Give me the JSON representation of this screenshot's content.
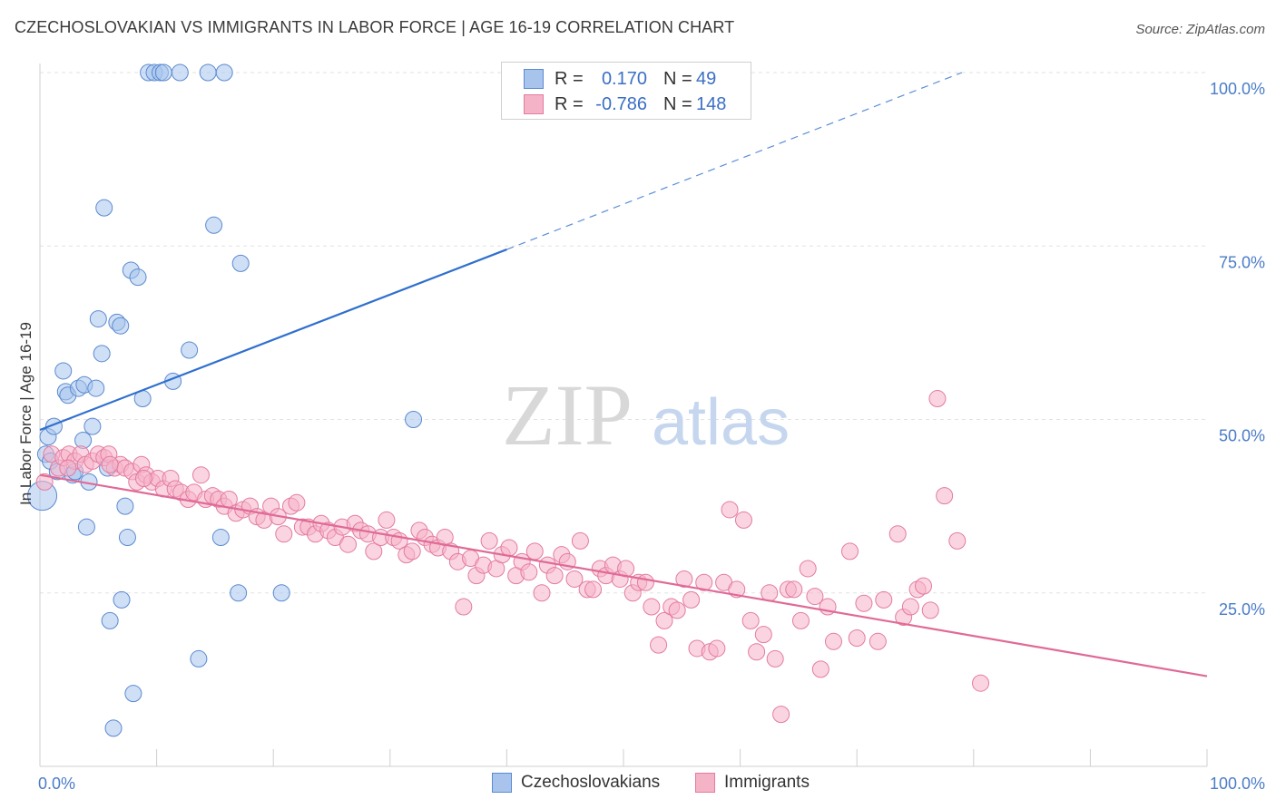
{
  "title": "CZECHOSLOVAKIAN VS IMMIGRANTS IN LABOR FORCE | AGE 16-19 CORRELATION CHART",
  "source": "Source: ZipAtlas.com",
  "watermark": {
    "zip": "ZIP",
    "atlas": "atlas"
  },
  "legend": {
    "r_label": "R =",
    "n_label": "N =",
    "rows": [
      {
        "r": "0.170",
        "n": "49",
        "color": "#4a7cc8"
      },
      {
        "r": "-0.786",
        "n": "148",
        "color": "#e06a96"
      }
    ]
  },
  "chart_data": {
    "type": "scatter",
    "title": "CZECHOSLOVAKIAN VS IMMIGRANTS IN LABOR FORCE | AGE 16-19 CORRELATION CHART",
    "xlabel": "",
    "ylabel": "In Labor Force | Age 16-19",
    "xlim": [
      0,
      100
    ],
    "ylim": [
      0,
      100
    ],
    "x_tick_labels": [
      "0.0%",
      "100.0%"
    ],
    "y_ticks": [
      25,
      50,
      75,
      100
    ],
    "y_tick_labels": [
      "25.0%",
      "50.0%",
      "75.0%",
      "100.0%"
    ],
    "grid": true,
    "legend_position": "top-center",
    "series": [
      {
        "name": "Czechoslovakians",
        "color": "#a8c4ec",
        "edge": "#5b8ad0",
        "trend": {
          "x0": 0,
          "y0": 48.5,
          "x1": 40,
          "y1": 74.5,
          "dash_to_x": 79,
          "dash_to_y": 100
        },
        "points": [
          [
            0.2,
            39
          ],
          [
            0.5,
            45
          ],
          [
            0.7,
            47.5
          ],
          [
            0.9,
            44
          ],
          [
            1.2,
            49
          ],
          [
            1.5,
            42.5
          ],
          [
            2.0,
            57
          ],
          [
            2.2,
            54
          ],
          [
            2.4,
            53.5
          ],
          [
            2.8,
            42
          ],
          [
            3.3,
            54.5
          ],
          [
            3.7,
            47
          ],
          [
            3.8,
            55
          ],
          [
            4.0,
            34.5
          ],
          [
            4.2,
            41
          ],
          [
            4.5,
            49
          ],
          [
            4.8,
            54.5
          ],
          [
            5.0,
            64.5
          ],
          [
            5.3,
            59.5
          ],
          [
            5.5,
            80.5
          ],
          [
            5.8,
            43
          ],
          [
            6.0,
            21
          ],
          [
            6.3,
            5.5
          ],
          [
            6.6,
            64
          ],
          [
            6.9,
            63.5
          ],
          [
            7.0,
            24
          ],
          [
            7.3,
            37.5
          ],
          [
            7.5,
            33
          ],
          [
            7.8,
            71.5
          ],
          [
            8.0,
            10.5
          ],
          [
            8.4,
            70.5
          ],
          [
            8.8,
            53
          ],
          [
            9.3,
            100
          ],
          [
            9.8,
            100
          ],
          [
            10.3,
            100
          ],
          [
            10.6,
            100
          ],
          [
            11.4,
            55.5
          ],
          [
            12.0,
            100
          ],
          [
            12.8,
            60
          ],
          [
            13.6,
            15.5
          ],
          [
            14.4,
            100
          ],
          [
            14.9,
            78
          ],
          [
            15.5,
            33
          ],
          [
            15.8,
            100
          ],
          [
            17.0,
            25
          ],
          [
            17.2,
            72.5
          ],
          [
            20.7,
            25
          ],
          [
            32.0,
            50
          ],
          [
            3.0,
            42.5
          ]
        ],
        "sizes": {
          "0": 16
        }
      },
      {
        "name": "Immigrants",
        "color": "#f5b3c8",
        "edge": "#e47ba0",
        "trend": {
          "x0": 0,
          "y0": 42,
          "x1": 100,
          "y1": 13
        },
        "points": [
          [
            0.4,
            41
          ],
          [
            1.0,
            45
          ],
          [
            1.6,
            43
          ],
          [
            2.0,
            44.5
          ],
          [
            2.5,
            45
          ],
          [
            3.0,
            44
          ],
          [
            3.5,
            45
          ],
          [
            3.9,
            43.5
          ],
          [
            4.5,
            44
          ],
          [
            5.0,
            45
          ],
          [
            5.5,
            44.5
          ],
          [
            5.9,
            45
          ],
          [
            6.4,
            43
          ],
          [
            6.9,
            43.5
          ],
          [
            7.3,
            43
          ],
          [
            7.9,
            42.5
          ],
          [
            8.3,
            41
          ],
          [
            8.7,
            43.5
          ],
          [
            9.1,
            42
          ],
          [
            9.6,
            41
          ],
          [
            10.1,
            41.5
          ],
          [
            10.6,
            40
          ],
          [
            11.2,
            41.5
          ],
          [
            11.6,
            40
          ],
          [
            12.1,
            39.5
          ],
          [
            12.7,
            38.5
          ],
          [
            13.2,
            39.5
          ],
          [
            13.8,
            42
          ],
          [
            14.2,
            38.5
          ],
          [
            14.8,
            39
          ],
          [
            15.3,
            38.5
          ],
          [
            15.8,
            37.5
          ],
          [
            16.2,
            38.5
          ],
          [
            16.8,
            36.5
          ],
          [
            17.4,
            37
          ],
          [
            18.0,
            37.5
          ],
          [
            18.6,
            36
          ],
          [
            19.2,
            35.5
          ],
          [
            19.8,
            37.5
          ],
          [
            20.4,
            36
          ],
          [
            20.9,
            33.5
          ],
          [
            21.5,
            37.5
          ],
          [
            22.0,
            38
          ],
          [
            22.5,
            34.5
          ],
          [
            23.0,
            34.5
          ],
          [
            23.6,
            33.5
          ],
          [
            24.1,
            35
          ],
          [
            24.7,
            34
          ],
          [
            25.3,
            33
          ],
          [
            25.9,
            34.5
          ],
          [
            26.4,
            32
          ],
          [
            27.0,
            35
          ],
          [
            27.5,
            34
          ],
          [
            28.1,
            33.5
          ],
          [
            28.6,
            31
          ],
          [
            29.2,
            33
          ],
          [
            29.7,
            35.5
          ],
          [
            30.3,
            33
          ],
          [
            30.8,
            32.5
          ],
          [
            31.4,
            30.5
          ],
          [
            31.9,
            31
          ],
          [
            32.5,
            34
          ],
          [
            33.0,
            33
          ],
          [
            33.6,
            32
          ],
          [
            34.1,
            31.5
          ],
          [
            34.7,
            33
          ],
          [
            35.2,
            31
          ],
          [
            35.8,
            29.5
          ],
          [
            36.3,
            23
          ],
          [
            36.9,
            30
          ],
          [
            37.4,
            27.5
          ],
          [
            38.0,
            29
          ],
          [
            38.5,
            32.5
          ],
          [
            39.1,
            28.5
          ],
          [
            39.6,
            30.5
          ],
          [
            40.2,
            31.5
          ],
          [
            40.8,
            27.5
          ],
          [
            41.3,
            29.5
          ],
          [
            41.9,
            28
          ],
          [
            42.4,
            31
          ],
          [
            43.0,
            25
          ],
          [
            43.5,
            29
          ],
          [
            44.1,
            27.5
          ],
          [
            44.7,
            30.5
          ],
          [
            45.2,
            29.5
          ],
          [
            45.8,
            27
          ],
          [
            46.3,
            32.5
          ],
          [
            46.9,
            25.5
          ],
          [
            47.4,
            25.5
          ],
          [
            48.0,
            28.5
          ],
          [
            48.5,
            27.5
          ],
          [
            49.1,
            29
          ],
          [
            49.7,
            27
          ],
          [
            50.2,
            28.5
          ],
          [
            50.8,
            25
          ],
          [
            51.3,
            26.5
          ],
          [
            51.9,
            26.5
          ],
          [
            52.4,
            23
          ],
          [
            53.0,
            17.5
          ],
          [
            53.5,
            21
          ],
          [
            54.1,
            23
          ],
          [
            54.6,
            22.5
          ],
          [
            55.2,
            27
          ],
          [
            55.8,
            24
          ],
          [
            56.3,
            17
          ],
          [
            56.9,
            26.5
          ],
          [
            57.4,
            16.5
          ],
          [
            58.0,
            17
          ],
          [
            58.6,
            26.5
          ],
          [
            59.1,
            37
          ],
          [
            59.7,
            25.5
          ],
          [
            60.3,
            35.5
          ],
          [
            60.9,
            21
          ],
          [
            61.4,
            16.5
          ],
          [
            62.0,
            19
          ],
          [
            62.5,
            25
          ],
          [
            63.0,
            15.5
          ],
          [
            63.5,
            7.5
          ],
          [
            64.1,
            25.5
          ],
          [
            64.6,
            25.5
          ],
          [
            65.2,
            21
          ],
          [
            65.8,
            28.5
          ],
          [
            66.4,
            24.5
          ],
          [
            66.9,
            14
          ],
          [
            67.5,
            23
          ],
          [
            68.0,
            18
          ],
          [
            69.4,
            31
          ],
          [
            70.0,
            18.5
          ],
          [
            70.6,
            23.5
          ],
          [
            71.8,
            18
          ],
          [
            72.3,
            24
          ],
          [
            73.5,
            33.5
          ],
          [
            74.0,
            21.5
          ],
          [
            74.6,
            23
          ],
          [
            75.2,
            25.5
          ],
          [
            75.7,
            26
          ],
          [
            76.3,
            22.5
          ],
          [
            76.9,
            53
          ],
          [
            77.5,
            39
          ],
          [
            78.6,
            32.5
          ],
          [
            80.6,
            12
          ],
          [
            2.4,
            43
          ],
          [
            6.0,
            43.5
          ],
          [
            8.9,
            41.5
          ]
        ]
      }
    ]
  },
  "bottom_legend": [
    {
      "label": "Czechoslovakians",
      "color": "#a8c4ec",
      "edge": "#5b8ad0"
    },
    {
      "label": "Immigrants",
      "color": "#f5b3c8",
      "edge": "#e47ba0"
    }
  ]
}
